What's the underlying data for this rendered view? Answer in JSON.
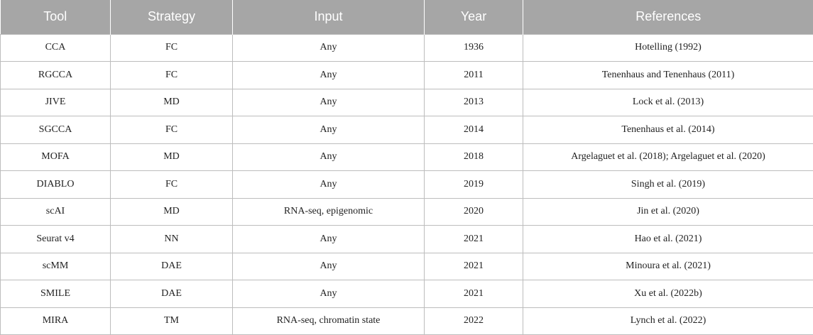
{
  "table": {
    "headers": [
      "Tool",
      "Strategy",
      "Input",
      "Year",
      "References"
    ],
    "rows": [
      [
        "CCA",
        "FC",
        "Any",
        "1936",
        "Hotelling (1992)"
      ],
      [
        "RGCCA",
        "FC",
        "Any",
        "2011",
        "Tenenhaus and Tenenhaus (2011)"
      ],
      [
        "JIVE",
        "MD",
        "Any",
        "2013",
        "Lock et al. (2013)"
      ],
      [
        "SGCCA",
        "FC",
        "Any",
        "2014",
        "Tenenhaus et al. (2014)"
      ],
      [
        "MOFA",
        "MD",
        "Any",
        "2018",
        "Argelaguet et al. (2018); Argelaguet et al. (2020)"
      ],
      [
        "DIABLO",
        "FC",
        "Any",
        "2019",
        "Singh et al. (2019)"
      ],
      [
        "scAI",
        "MD",
        "RNA-seq, epigenomic",
        "2020",
        "Jin et al. (2020)"
      ],
      [
        "Seurat v4",
        "NN",
        "Any",
        "2021",
        "Hao et al. (2021)"
      ],
      [
        "scMM",
        "DAE",
        "Any",
        "2021",
        "Minoura et al. (2021)"
      ],
      [
        "SMILE",
        "DAE",
        "Any",
        "2021",
        "Xu et al. (2022b)"
      ],
      [
        "MIRA",
        "TM",
        "RNA-seq, chromatin state",
        "2022",
        "Lynch et al. (2022)"
      ]
    ]
  },
  "colors": {
    "header_background": "#a6a6a6",
    "header_text": "#ffffff",
    "cell_border": "#bdbdbd",
    "cell_text": "#222222"
  }
}
